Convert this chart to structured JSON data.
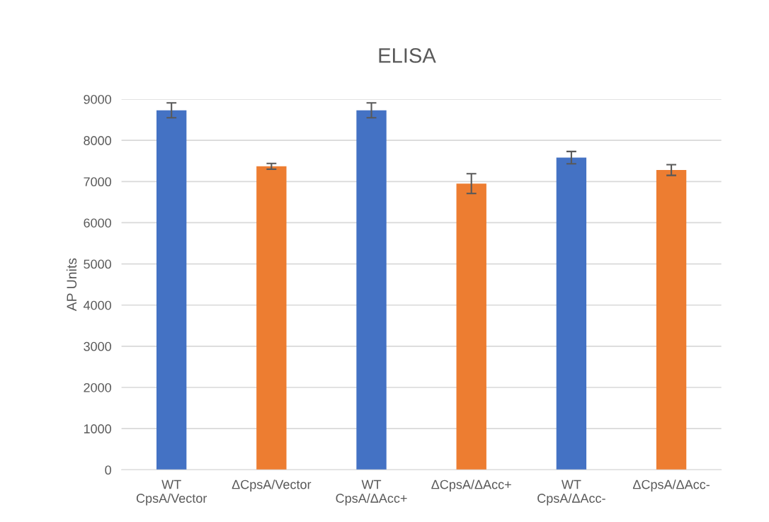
{
  "chart_data": {
    "type": "bar",
    "title": "ELISA",
    "ylabel": "AP Units",
    "categories": [
      "WT\nCpsA/Vector",
      "ΔCpsA/Vector",
      "WT\nCpsA/ΔAcc+",
      "ΔCpsA/ΔAcc+",
      "WT\nCpsA/ΔAcc-",
      "ΔCpsA/ΔAcc-"
    ],
    "values": [
      8730,
      7370,
      8730,
      6950,
      7580,
      7280
    ],
    "errors": [
      180,
      70,
      180,
      240,
      150,
      130
    ],
    "colors": [
      "#4472c4",
      "#ed7d31",
      "#4472c4",
      "#ed7d31",
      "#4472c4",
      "#ed7d31"
    ],
    "ylim": [
      0,
      9000
    ],
    "yticks": [
      0,
      1000,
      2000,
      3000,
      4000,
      5000,
      6000,
      7000,
      8000,
      9000
    ],
    "grid": "y"
  }
}
